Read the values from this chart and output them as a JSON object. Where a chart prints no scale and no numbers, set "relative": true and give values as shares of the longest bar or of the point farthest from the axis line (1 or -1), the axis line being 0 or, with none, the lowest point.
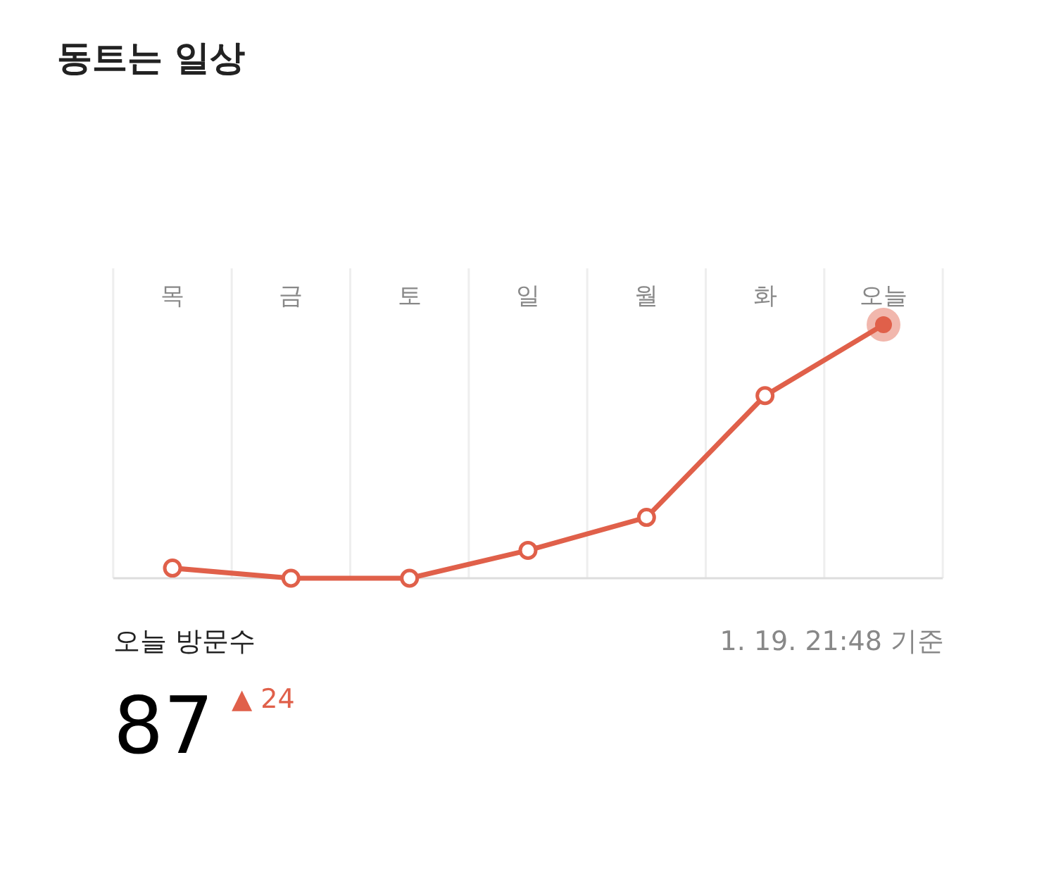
{
  "chart_data": {
    "type": "line",
    "title": "동트는 일상",
    "categories": [
      "목",
      "금",
      "토",
      "일",
      "월",
      "화",
      "오늘"
    ],
    "values": [
      0.04,
      0,
      0,
      0.11,
      0.24,
      0.72,
      1
    ],
    "relative": true,
    "color": "#e0604a",
    "marker": "circle",
    "grid": "x",
    "annotations": [
      "오늘 방문수",
      "1. 19. 21:48 기준",
      "87",
      "▲ 24"
    ]
  }
}
